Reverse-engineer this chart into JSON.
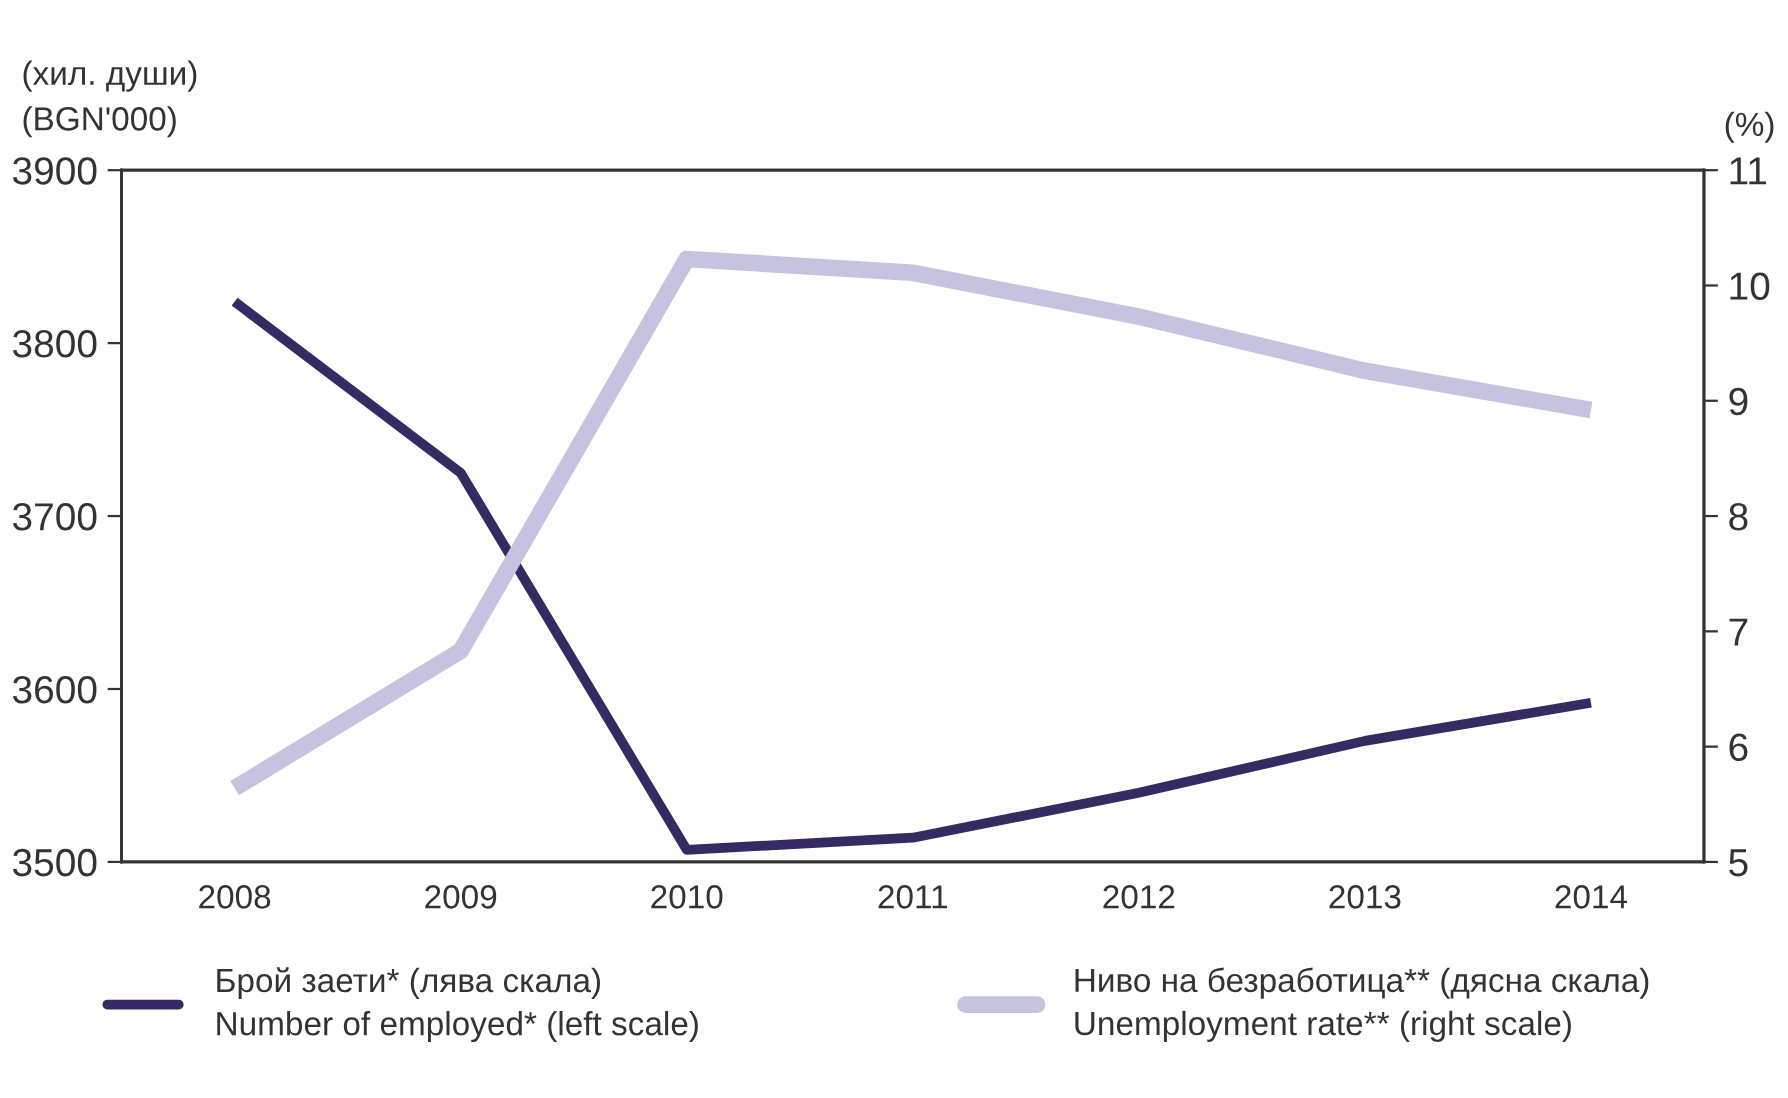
{
  "chart_data": {
    "type": "line",
    "ylabel": "(хил. души)\n(BGN'000)",
    "y2label": "(%)",
    "categories": [
      "2008",
      "2009",
      "2010",
      "2011",
      "2012",
      "2013",
      "2014"
    ],
    "series": [
      {
        "name": "Брой заети* (лява скала)\nNumber of employed* (left scale)",
        "color": "#352a62",
        "values": [
          3824,
          3725,
          3507,
          3514,
          3540,
          3570,
          3592
        ]
      },
      {
        "name": "Ниво на безработица** (дясна скала)\nUnemployment rate** (right scale)",
        "color": "#c5c3e0",
        "axis": "y2",
        "values": [
          5.64,
          6.83,
          10.23,
          10.11,
          9.73,
          9.26,
          8.92
        ]
      }
    ],
    "ylim": [
      3500,
      3900
    ],
    "yticks": [
      3500,
      3600,
      3700,
      3800,
      3900
    ],
    "y2lim": [
      5,
      11
    ],
    "y2ticks": [
      5,
      6,
      7,
      8,
      9,
      10,
      11
    ],
    "grid": false,
    "legend": "bottom",
    "marker": "none",
    "line_style": "solid"
  }
}
